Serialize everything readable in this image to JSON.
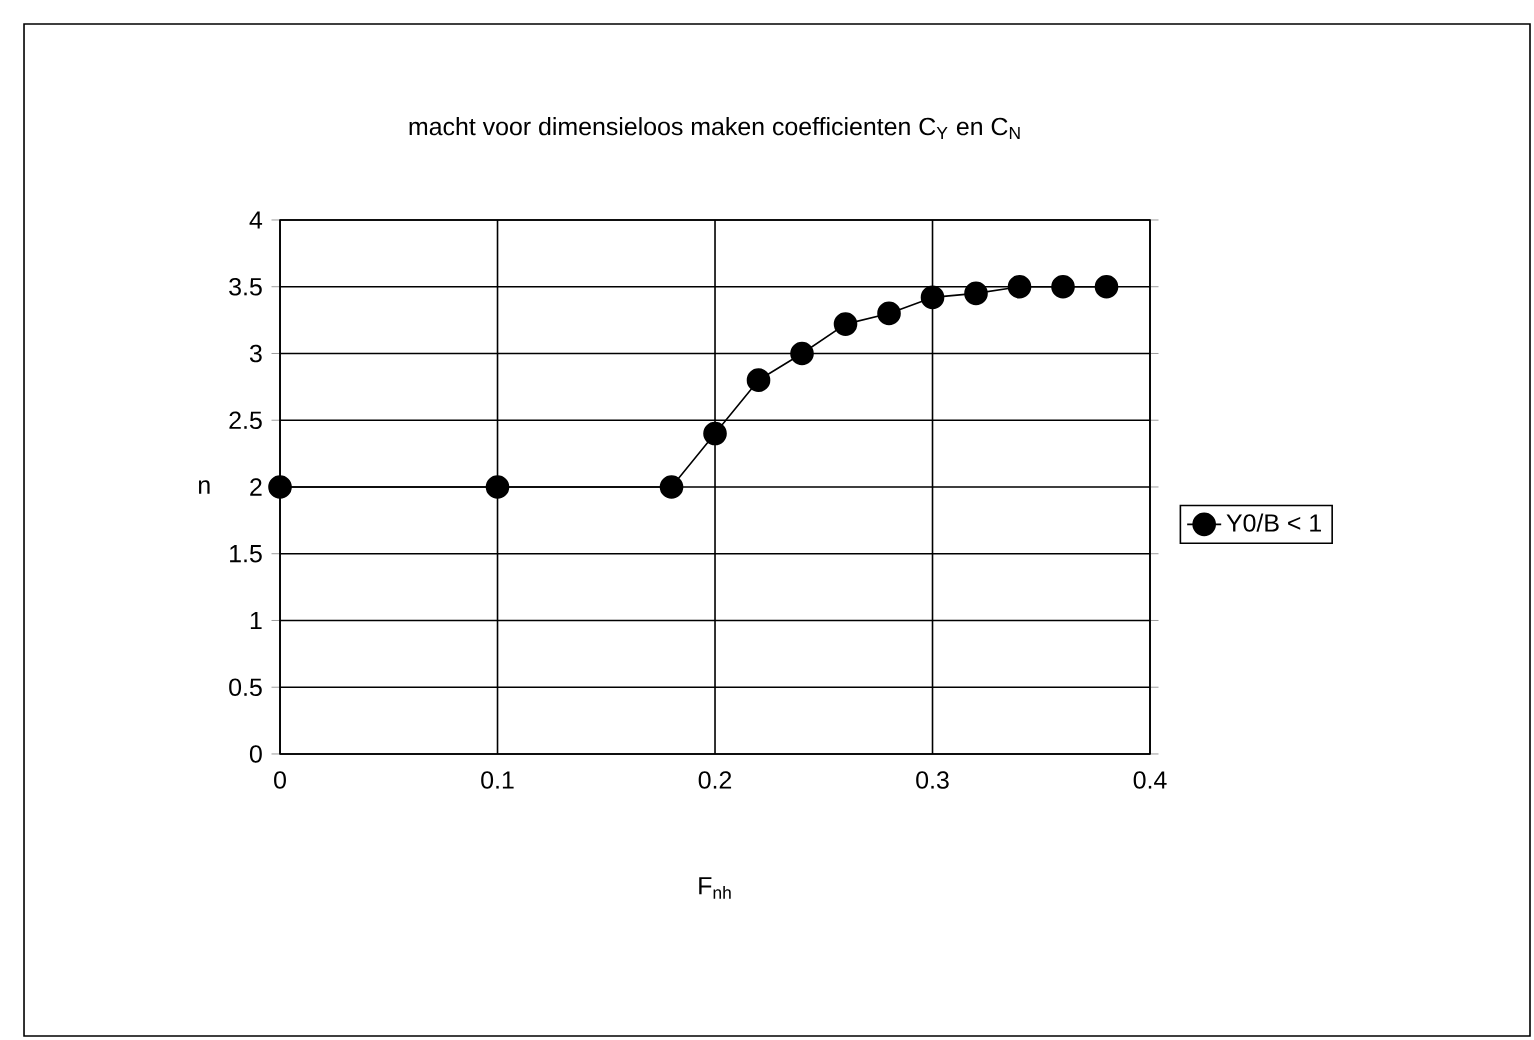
{
  "chart_data": {
    "type": "line",
    "title": "macht voor dimensieloos maken coefficienten C$_{Y}$ en C$_{N}$",
    "xlabel": "F$_{nh}$",
    "ylabel": "n",
    "series": [
      {
        "name": "Y0/B < 1",
        "color": "#000000",
        "x": [
          0,
          0.1,
          0.18,
          0.2,
          0.22,
          0.24,
          0.26,
          0.28,
          0.3,
          0.32,
          0.34,
          0.36,
          0.38
        ],
        "values": [
          2,
          2,
          2,
          2.4,
          2.8,
          3.0,
          3.22,
          3.3,
          3.42,
          3.45,
          3.5,
          3.5,
          3.5
        ]
      }
    ],
    "xlim": [
      0,
      0.4
    ],
    "xticks": [
      0,
      0.1,
      0.2,
      0.3,
      0.4
    ],
    "ylim": [
      0,
      4
    ],
    "yticks": [
      0,
      0.5,
      1,
      1.5,
      2,
      2.5,
      3,
      3.5,
      4
    ],
    "grid": true,
    "legend": "right",
    "marker": "circle",
    "line_style": "solid"
  }
}
